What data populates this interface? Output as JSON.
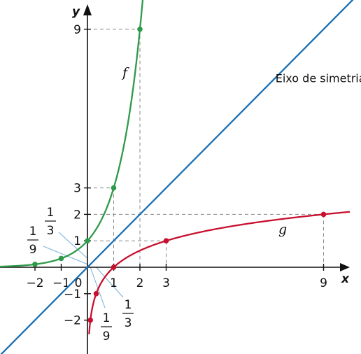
{
  "chart_data": {
    "type": "line",
    "title": "",
    "xlabel": "x",
    "ylabel": "y",
    "xlim": [
      -3,
      10
    ],
    "ylim": [
      -3.3,
      10
    ],
    "grid": false,
    "x_ticks": [
      {
        "value": -2,
        "label": "−2"
      },
      {
        "value": -1,
        "label": "−1"
      },
      {
        "value": 0,
        "label": "0"
      },
      {
        "value": 1,
        "label": "1"
      },
      {
        "value": 2,
        "label": "2"
      },
      {
        "value": 3,
        "label": "3"
      },
      {
        "value": 9,
        "label": "9"
      }
    ],
    "y_ticks": [
      {
        "value": -2,
        "label": "−2"
      },
      {
        "value": -1,
        "label": "−1"
      },
      {
        "value": 1,
        "label": "1"
      },
      {
        "value": 2,
        "label": "2"
      },
      {
        "value": 3,
        "label": "3"
      },
      {
        "value": 9,
        "label": "9"
      }
    ],
    "fraction_labels": [
      {
        "value": 0.1111,
        "axis": "y",
        "numerator": "1",
        "denominator": "9"
      },
      {
        "value": 0.3333,
        "axis": "y",
        "numerator": "1",
        "denominator": "3"
      },
      {
        "value": 0.1111,
        "axis": "x",
        "numerator": "1",
        "denominator": "9"
      },
      {
        "value": 0.3333,
        "axis": "x",
        "numerator": "1",
        "denominator": "3"
      }
    ],
    "series": [
      {
        "name": "f",
        "color": "#2e9a4a",
        "function": "3^x",
        "points": [
          [
            -2,
            0.1111
          ],
          [
            -1,
            0.3333
          ],
          [
            0,
            1
          ],
          [
            1,
            3
          ],
          [
            2,
            9
          ]
        ]
      },
      {
        "name": "g",
        "color": "#c8102e",
        "function": "log_3 x",
        "points": [
          [
            0.1111,
            -2
          ],
          [
            0.3333,
            -1
          ],
          [
            1,
            0
          ],
          [
            3,
            1
          ],
          [
            9,
            2
          ]
        ]
      },
      {
        "name": "",
        "color": "#1a6fb3",
        "function": "x",
        "points": [
          [
            -3,
            -3
          ],
          [
            10,
            10
          ]
        ]
      }
    ],
    "annotations": [
      {
        "text": "Eixo de simetria",
        "x": 8.5,
        "y": 7.15
      }
    ],
    "guide_lines": [
      {
        "x": 2,
        "y": 9
      },
      {
        "x": 1,
        "y": 3
      },
      {
        "x": 9,
        "y": 2
      },
      {
        "x": 3,
        "y": 1
      }
    ]
  }
}
